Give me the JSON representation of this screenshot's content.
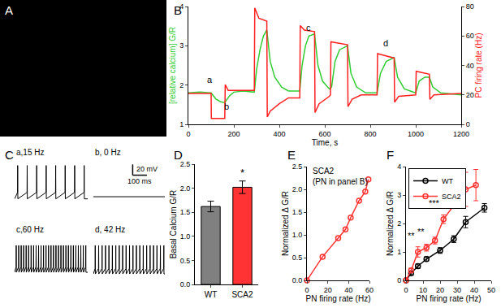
{
  "chart_data": [
    {
      "panel_label": "A",
      "type": "image"
    },
    {
      "panel_label": "B",
      "type": "line",
      "grid": false,
      "xlabel": "Time, s",
      "ylabel": "[relative calcium] G/R",
      "y2label": "PC firing rate (Hz)",
      "xlim": [
        0,
        1200
      ],
      "xticks": [
        0,
        200,
        400,
        600,
        800,
        1000,
        1200
      ],
      "ylim": [
        1,
        4
      ],
      "yticks": [
        1,
        2,
        3,
        4
      ],
      "y2lim": [
        0,
        80
      ],
      "y2ticks": [
        0,
        20,
        40,
        60,
        80
      ],
      "series": [
        {
          "color": "#33cc33",
          "line_style": "solid",
          "x": [
            0,
            50,
            100,
            120,
            140,
            160,
            180,
            200,
            240,
            290,
            300,
            315,
            330,
            345,
            360,
            380,
            410,
            440,
            490,
            500,
            515,
            530,
            555,
            570,
            590,
            620,
            630,
            645,
            665,
            700,
            715,
            740,
            780,
            830,
            845,
            870,
            905,
            920,
            950,
            1000,
            1015,
            1040,
            1060,
            1075,
            1110,
            1200
          ],
          "values": [
            1.8,
            1.82,
            1.8,
            1.65,
            1.58,
            1.55,
            1.72,
            1.82,
            1.85,
            1.82,
            2.4,
            2.9,
            3.25,
            3.4,
            2.6,
            2.2,
            1.95,
            1.85,
            1.85,
            2.5,
            3.0,
            3.25,
            3.3,
            2.5,
            2.1,
            1.9,
            1.95,
            2.6,
            2.9,
            3.0,
            2.3,
            1.95,
            1.8,
            1.8,
            2.3,
            2.6,
            2.7,
            2.2,
            1.9,
            1.8,
            2.1,
            2.2,
            2.2,
            1.95,
            1.8,
            1.75
          ]
        },
        {
          "color": "#ff2020",
          "line_style": "solid",
          "axis": "y2",
          "x": [
            0,
            100,
            101,
            160,
            162,
            175,
            290,
            292,
            310,
            345,
            347,
            360,
            400,
            440,
            490,
            492,
            510,
            555,
            557,
            575,
            620,
            625,
            627,
            700,
            702,
            720,
            760,
            830,
            832,
            905,
            907,
            925,
            1000,
            1002,
            1060,
            1062,
            1080,
            1200
          ],
          "values": [
            21,
            21,
            4,
            4,
            27,
            23,
            23,
            79,
            72,
            70,
            5,
            9,
            14,
            18,
            18,
            67,
            64,
            63,
            8,
            14,
            19,
            20,
            56,
            54,
            12,
            17,
            20,
            20,
            48,
            45,
            15,
            19,
            20,
            36,
            34,
            17,
            20,
            21
          ]
        }
      ],
      "annotations": [
        {
          "text": "a",
          "x": 95,
          "y": 1.97
        },
        {
          "text": "b",
          "x": 168,
          "y": 1.3
        },
        {
          "text": "c",
          "x": 528,
          "y": 3.3
        },
        {
          "text": "d",
          "x": 868,
          "y": 2.9
        }
      ]
    },
    {
      "panel_label": "C",
      "type": "line",
      "tick_labels": false,
      "color": "#000000",
      "xlim": [
        0,
        500
      ],
      "ylim": [
        -70,
        10
      ],
      "series": [
        {
          "label": "a,15 Hz",
          "threshold": -50,
          "peak": 0,
          "trough": -62,
          "spike_times": [
            20,
            85,
            150,
            215,
            280,
            345,
            410,
            475
          ]
        },
        {
          "label": "b, 0 Hz",
          "threshold": -58,
          "peak": -58,
          "trough": -58,
          "spike_times": []
        },
        {
          "label": "c,60 Hz",
          "threshold": -45,
          "peak": -5,
          "trough": -55,
          "spike_times": [
            10,
            27,
            44,
            61,
            78,
            95,
            112,
            129,
            146,
            163,
            180,
            197,
            214,
            231,
            248,
            265,
            282,
            299,
            316,
            333,
            350,
            367,
            384,
            401,
            418,
            435,
            452,
            469,
            486
          ]
        },
        {
          "label": "d, 42 Hz",
          "threshold": -48,
          "peak": -5,
          "trough": -58,
          "spike_times": [
            12,
            36,
            60,
            84,
            108,
            132,
            156,
            180,
            204,
            228,
            252,
            276,
            300,
            324,
            348,
            372,
            396,
            420,
            444,
            468,
            492
          ]
        }
      ],
      "scale_bar": {
        "x": 100,
        "y": 20,
        "x_label": "100 ms",
        "y_label": "20 mV"
      }
    },
    {
      "panel_label": "D",
      "type": "bar",
      "grid": false,
      "ylabel": "Basal Calcium G/R",
      "categories": [
        "WT",
        "SCA2"
      ],
      "values": [
        1.62,
        2.02
      ],
      "errors": [
        0.11,
        0.13
      ],
      "colors": [
        "#808080",
        "#ff3333"
      ],
      "ylim": [
        0,
        2.5
      ],
      "yticks": [
        {
          "value": 0,
          "label": "0.0"
        },
        {
          "value": 0.5,
          "label": "0.5"
        },
        {
          "value": 1,
          "label": "1.0"
        },
        {
          "value": 1.5,
          "label": "1.5"
        },
        {
          "value": 2,
          "label": "2.0"
        },
        {
          "value": 2.5,
          "label": "2.5"
        }
      ],
      "annotations": [
        {
          "text": "*",
          "x": "SCA2",
          "y": 2.17
        }
      ]
    },
    {
      "panel_label": "E",
      "type": "line",
      "grid": false,
      "title_lines": [
        "SCA2",
        "(PN in panel B)"
      ],
      "xlabel": "PN firing rate (Hz)",
      "ylabel": "Normalized Δ G/R",
      "xlim": [
        0,
        60
      ],
      "xticks": [
        0,
        20,
        40,
        60
      ],
      "ylim": [
        0,
        2.5
      ],
      "yticks": [
        {
          "value": 0,
          "label": "0.0"
        },
        {
          "value": 0.5,
          "label": "0.5"
        },
        {
          "value": 1,
          "label": "1.0"
        },
        {
          "value": 1.5,
          "label": "1.5"
        },
        {
          "value": 2,
          "label": "2.0"
        },
        {
          "value": 2.5,
          "label": "2.5"
        }
      ],
      "color": "#ff3333",
      "marker": "open circle",
      "line_style": "solid",
      "x": [
        0,
        15,
        30,
        37,
        42,
        50,
        56,
        59
      ],
      "values": [
        0,
        0.52,
        0.93,
        1.12,
        1.38,
        1.75,
        1.95,
        2.22
      ]
    },
    {
      "panel_label": "F",
      "type": "line",
      "grid": false,
      "legend": "upper left",
      "xlabel": "PN firing rate (Hz)",
      "ylabel": "Normalized Δ G/R",
      "xlim": [
        0,
        50
      ],
      "xticks": [
        0,
        10,
        20,
        30,
        40,
        50
      ],
      "ylim": [
        0,
        4
      ],
      "yticks": [
        0,
        1,
        2,
        3,
        4
      ],
      "series": [
        {
          "name": "WT",
          "color": "#000000",
          "marker": "open circle",
          "line_style": "solid",
          "x": [
            0,
            3,
            7,
            12,
            20,
            28,
            35,
            46
          ],
          "values": [
            0,
            0.25,
            0.5,
            0.75,
            1.05,
            1.45,
            2.05,
            2.55
          ],
          "errors": [
            0,
            0.05,
            0.08,
            0.08,
            0.1,
            0.12,
            0.2,
            0.15
          ]
        },
        {
          "name": "SCA2",
          "color": "#ff3333",
          "marker": "open circle",
          "line_style": "solid",
          "x": [
            0,
            3,
            7,
            12,
            17,
            22,
            35,
            41
          ],
          "values": [
            0,
            0.35,
            1.0,
            1.15,
            1.4,
            2.15,
            3.2,
            3.35
          ],
          "errors": [
            0,
            0.08,
            0.18,
            0.12,
            0.12,
            0.15,
            0.6,
            0.55
          ]
        }
      ],
      "annotations": [
        {
          "text": "**",
          "x": 6,
          "y": 1.35
        },
        {
          "text": "**",
          "x": 12,
          "y": 1.5
        },
        {
          "text": "***",
          "x": 21,
          "y": 2.5
        }
      ]
    }
  ]
}
